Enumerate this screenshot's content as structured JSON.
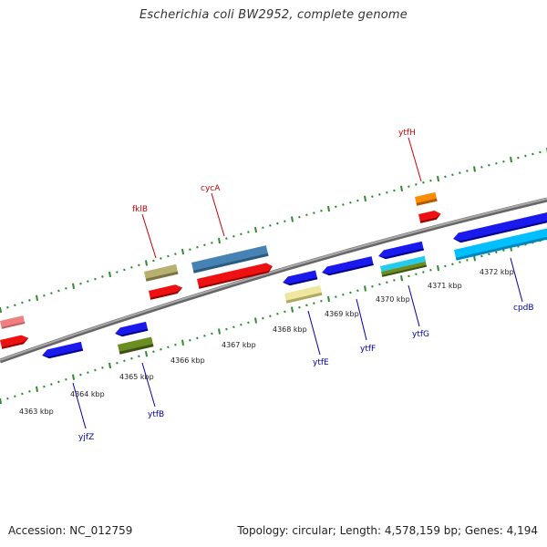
{
  "title": "Escherichia coli BW2952, complete genome",
  "footer": {
    "accession": "Accession: NC_012759",
    "summary": "Topology: circular; Length: 4,578,159 bp; Genes: 4,194"
  },
  "kbp_labels": [
    "4363 kbp",
    "4364 kbp",
    "4365 kbp",
    "4366 kbp",
    "4367 kbp",
    "4368 kbp",
    "4369 kbp",
    "4370 kbp",
    "4371 kbp",
    "4372 kbp"
  ],
  "genes_forward_labeled": [
    {
      "name": "fklB",
      "color": "#cc0000"
    },
    {
      "name": "cycA",
      "color": "#cc0000"
    },
    {
      "name": "ytfH",
      "color": "#cc0000"
    }
  ],
  "genes_reverse_labeled": [
    {
      "name": "yjfZ",
      "color": "#0000aa"
    },
    {
      "name": "ytfB",
      "color": "#0000aa"
    },
    {
      "name": "ytfE",
      "color": "#0000aa"
    },
    {
      "name": "ytfF",
      "color": "#0000aa"
    },
    {
      "name": "ytfG",
      "color": "#0000aa"
    },
    {
      "name": "cpdB",
      "color": "#0000aa"
    }
  ],
  "colors": {
    "backbone": "#888888",
    "tick": "#2e8b2e",
    "forward_cds": "#ee1111",
    "reverse_cds": "#1a1aee",
    "olive": "#b8b070",
    "steelblue": "#4682b4",
    "orange": "#ff8c00",
    "pink": "#f08080",
    "khaki": "#efe6a0",
    "cyan": "#22ccee",
    "green": "#6b8e23",
    "skyblue": "#00bfff"
  }
}
